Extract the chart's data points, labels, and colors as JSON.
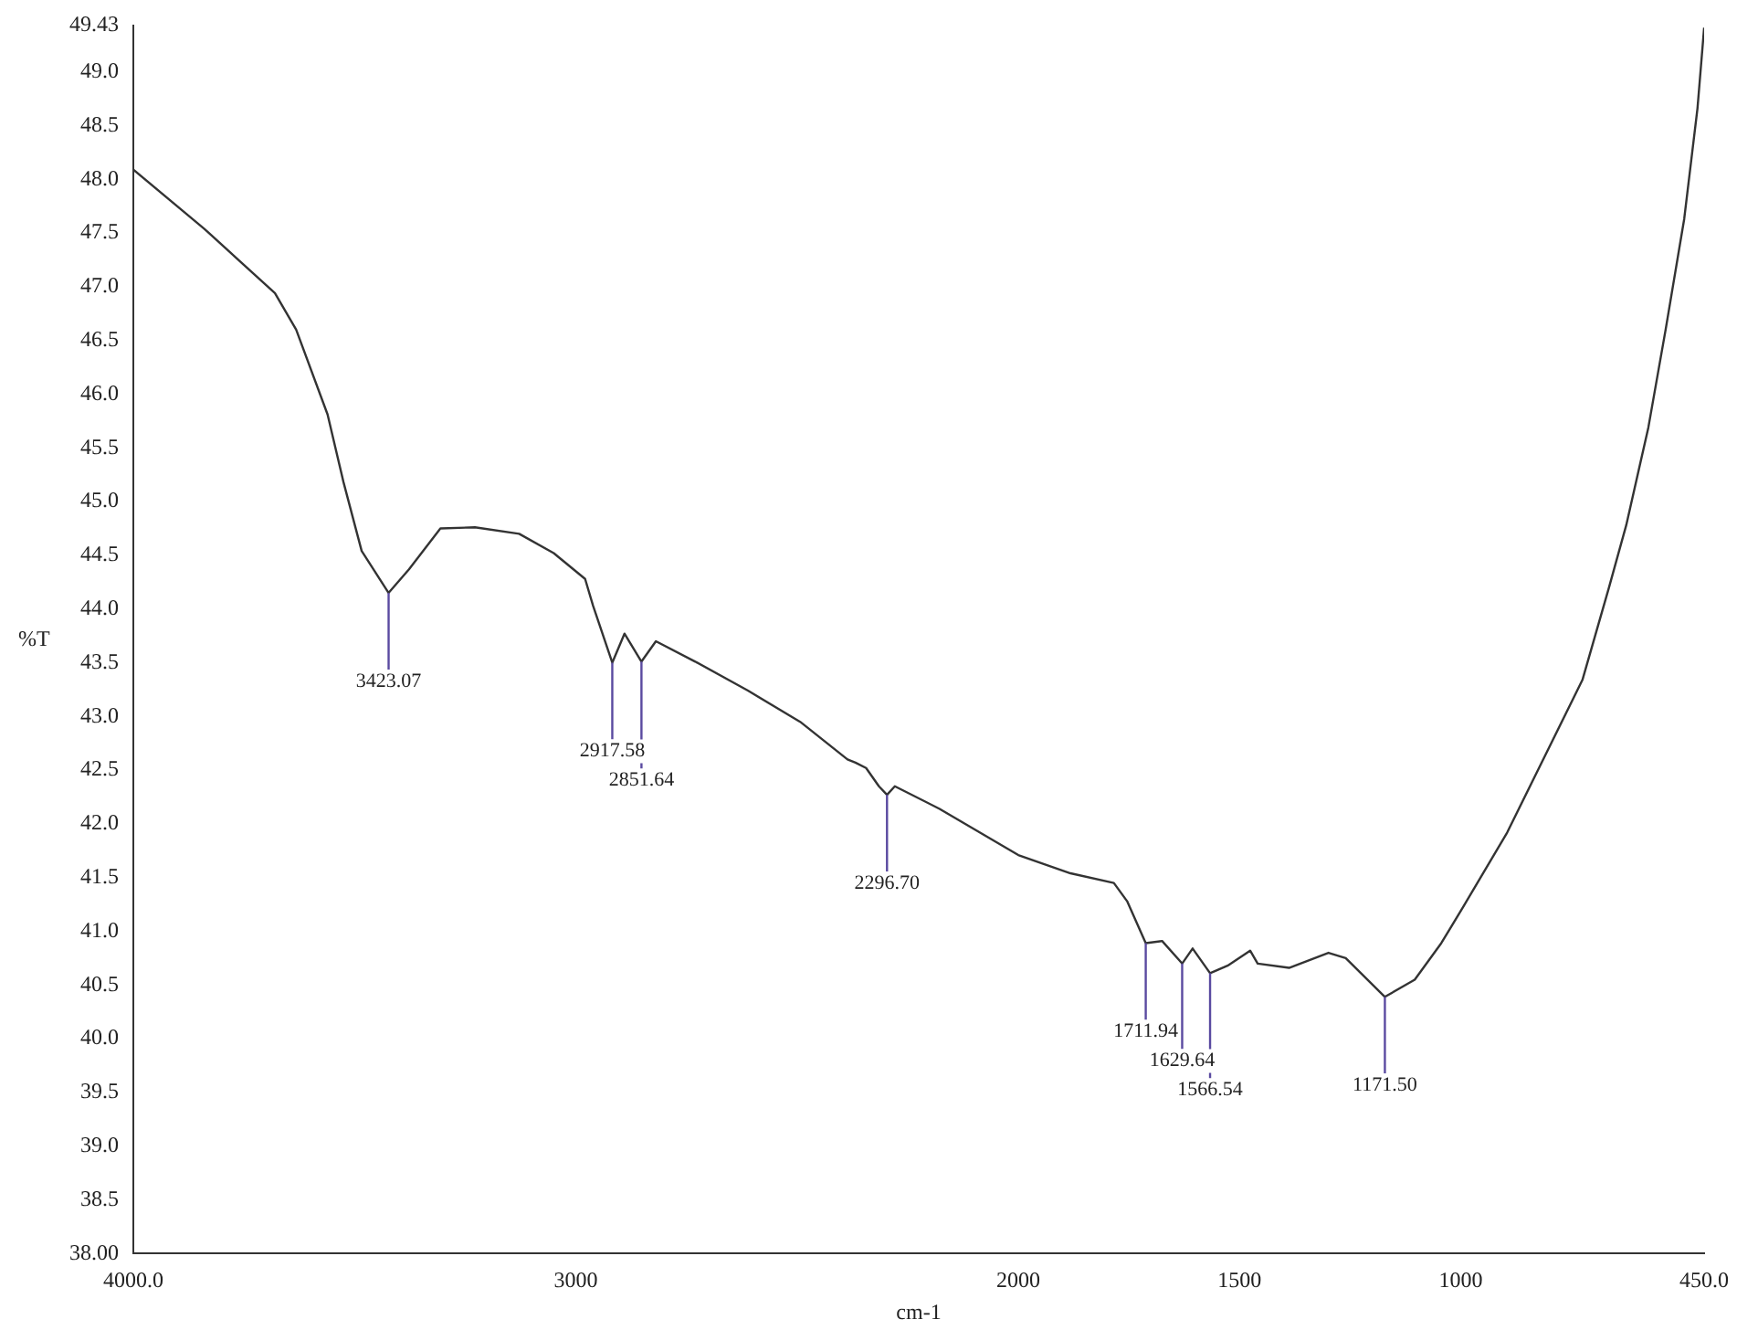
{
  "chart_data": {
    "type": "line",
    "xlabel": "cm-1",
    "ylabel": "%T",
    "x": [
      4000,
      3840,
      3680,
      3632,
      3561,
      3525,
      3484,
      3423.07,
      3377,
      3306,
      3228,
      3128,
      3050,
      2979,
      2961,
      2917.58,
      2890,
      2851.64,
      2819,
      2730,
      2611,
      2493,
      2386,
      2368,
      2344,
      2315,
      2296.7,
      2279,
      2178,
      2000,
      1882,
      1784,
      1754,
      1711.94,
      1675,
      1629.64,
      1606,
      1566.54,
      1527,
      1476,
      1459,
      1388,
      1299,
      1260,
      1171.5,
      1104,
      1044,
      994,
      895,
      725,
      665,
      626,
      576,
      537,
      495,
      465,
      450
    ],
    "series": [
      {
        "color": "#333333",
        "values": [
          48.09,
          47.54,
          46.94,
          46.6,
          45.81,
          45.18,
          44.54,
          44.15,
          44.37,
          44.75,
          44.76,
          44.7,
          44.52,
          44.28,
          44.03,
          43.5,
          43.77,
          43.51,
          43.7,
          43.51,
          43.24,
          42.95,
          42.6,
          42.57,
          42.52,
          42.35,
          42.27,
          42.35,
          42.14,
          41.71,
          41.54,
          41.45,
          41.28,
          40.89,
          40.91,
          40.7,
          40.84,
          40.61,
          40.68,
          40.82,
          40.7,
          40.66,
          40.8,
          40.75,
          40.39,
          40.55,
          40.89,
          41.23,
          41.92,
          43.34,
          44.2,
          44.78,
          45.69,
          46.6,
          47.63,
          48.66,
          49.41
        ]
      }
    ],
    "xlim": [
      4000,
      450
    ],
    "xticks": [
      {
        "value": 4000,
        "label": "4000.0"
      },
      3000,
      2000,
      1500,
      1000,
      {
        "value": 450,
        "label": "450.0"
      }
    ],
    "ylim": [
      38,
      49.43
    ],
    "yticks": [
      {
        "value": 38,
        "label": "38.00"
      },
      38.5,
      {
        "value": 39,
        "label": "39.0"
      },
      39.5,
      {
        "value": 40,
        "label": "40.0"
      },
      40.5,
      {
        "value": 41,
        "label": "41.0"
      },
      41.5,
      {
        "value": 42,
        "label": "42.0"
      },
      42.5,
      {
        "value": 43,
        "label": "43.0"
      },
      43.5,
      {
        "value": 44,
        "label": "44.0"
      },
      44.5,
      {
        "value": 45,
        "label": "45.0"
      },
      45.5,
      {
        "value": 46,
        "label": "46.0"
      },
      46.5,
      {
        "value": 47,
        "label": "47.0"
      },
      47.5,
      {
        "value": 48,
        "label": "48.0"
      },
      48.5,
      {
        "value": 49,
        "label": "49.0"
      },
      49.43
    ],
    "grid": false,
    "legend": false,
    "marker": "none",
    "line_style": "solid",
    "annotations": [
      {
        "text": "3423.07",
        "x": 3423.07,
        "y": 44.15
      },
      {
        "text": "2917.58",
        "x": 2917.58,
        "y": 43.5
      },
      {
        "text": "2851.64",
        "x": 2851.64,
        "y": 43.51
      },
      {
        "text": "2296.70",
        "x": 2296.7,
        "y": 42.27
      },
      {
        "text": "1711.94",
        "x": 1711.94,
        "y": 40.89
      },
      {
        "text": "1629.64",
        "x": 1629.64,
        "y": 40.7
      },
      {
        "text": "1566.54",
        "x": 1566.54,
        "y": 40.61
      },
      {
        "text": "1171.50",
        "x": 1171.5,
        "y": 40.39
      }
    ]
  }
}
